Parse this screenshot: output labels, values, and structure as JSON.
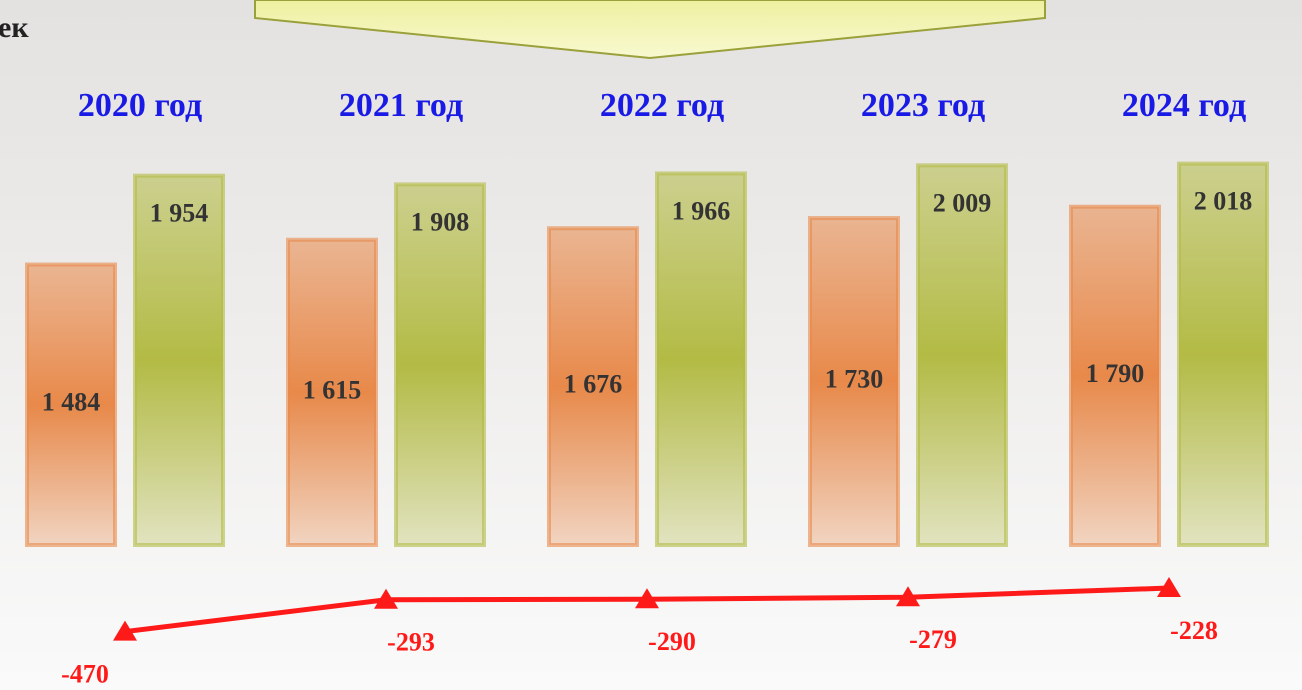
{
  "header": {
    "text": "ек"
  },
  "chart_data": {
    "type": "bar",
    "categories": [
      "2020 год",
      "2021 год",
      "2022 год",
      "2023 год",
      "2024 год"
    ],
    "series": [
      {
        "color": "#e8894a",
        "values": [
          1484,
          1615,
          1676,
          1730,
          1790
        ],
        "value_labels": [
          "1 484",
          "1 615",
          "1 676",
          "1 730",
          "1 790"
        ]
      },
      {
        "color": "#b3bb45",
        "values": [
          1954,
          1908,
          1966,
          2009,
          2018
        ],
        "value_labels": [
          "1 954",
          "1 908",
          "1 966",
          "2 009",
          "2 018"
        ]
      },
      {
        "type": "line",
        "color": "#ff1a1a",
        "values": [
          -470,
          -293,
          -290,
          -279,
          -228
        ]
      }
    ]
  }
}
